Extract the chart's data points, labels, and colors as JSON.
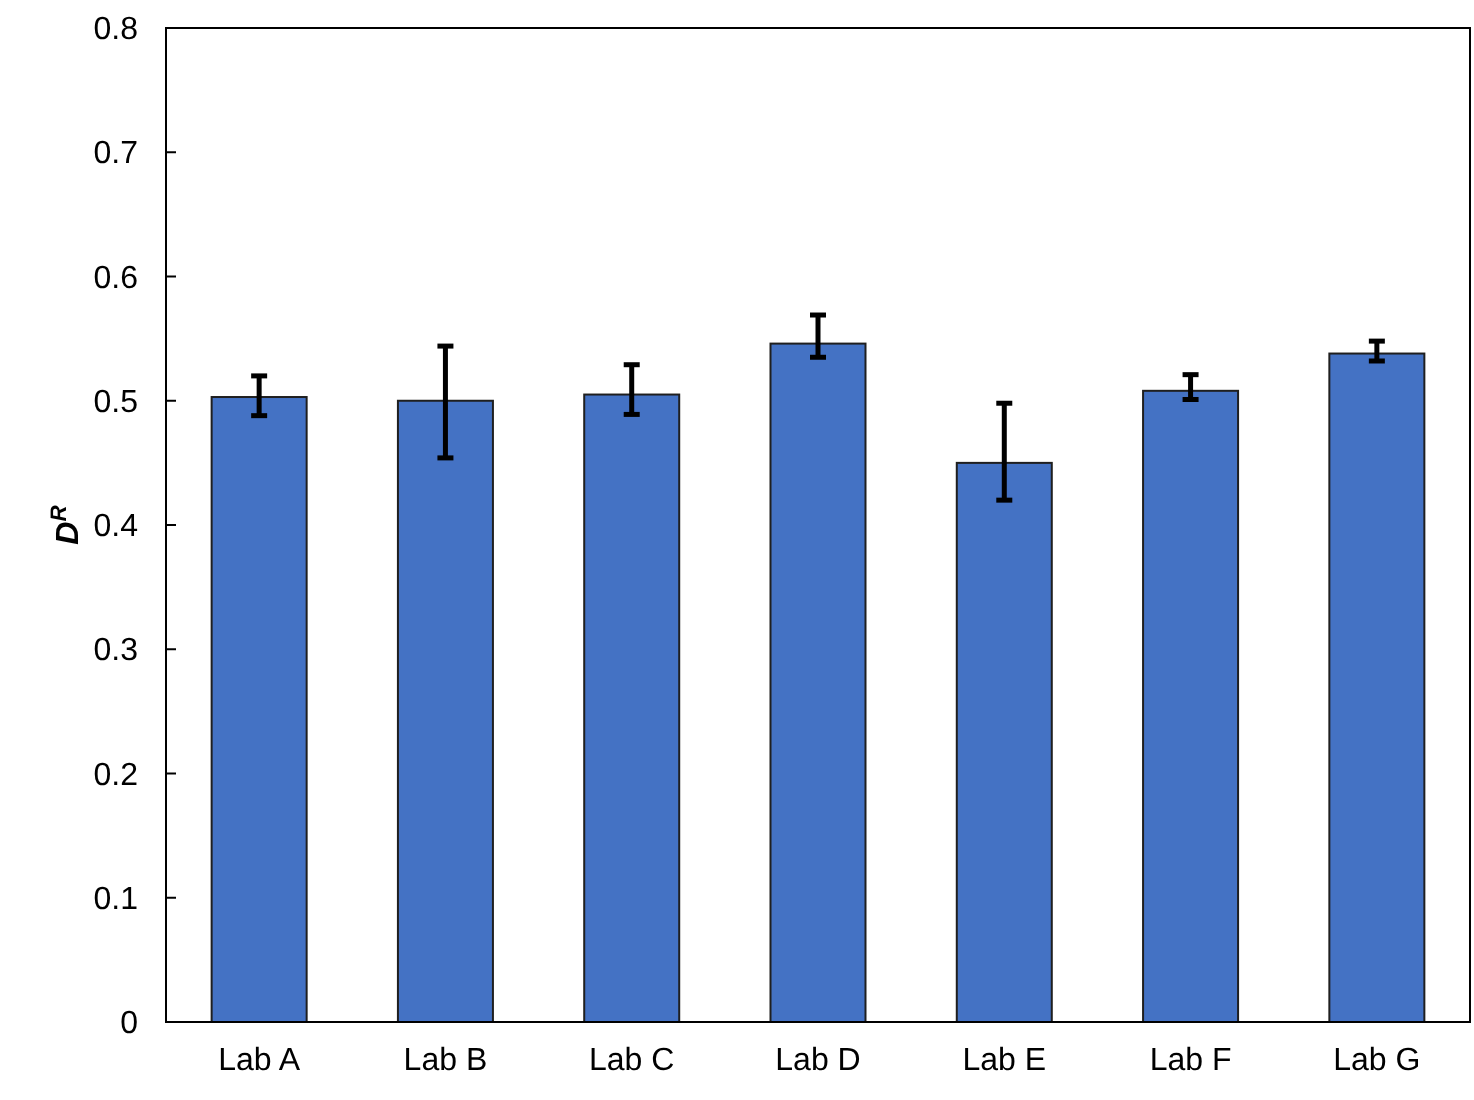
{
  "chart_data": {
    "type": "bar",
    "ylabel": "D$^{R}$",
    "categories": [
      "Lab A",
      "Lab B",
      "Lab C",
      "Lab D",
      "Lab E",
      "Lab F",
      "Lab G"
    ],
    "values": [
      0.503,
      0.5,
      0.505,
      0.546,
      0.45,
      0.508,
      0.538
    ],
    "errors": [
      [
        0.488,
        0.52
      ],
      [
        0.454,
        0.544
      ],
      [
        0.489,
        0.529
      ],
      [
        0.535,
        0.569
      ],
      [
        0.42,
        0.498
      ],
      [
        0.501,
        0.521
      ],
      [
        0.532,
        0.548
      ]
    ],
    "color": "#4472c4",
    "ylim": [
      0,
      0.8
    ],
    "yticks": [
      0,
      0.1,
      0.2,
      0.3,
      0.4,
      0.5,
      0.6,
      0.7,
      0.8
    ],
    "grid": false
  }
}
